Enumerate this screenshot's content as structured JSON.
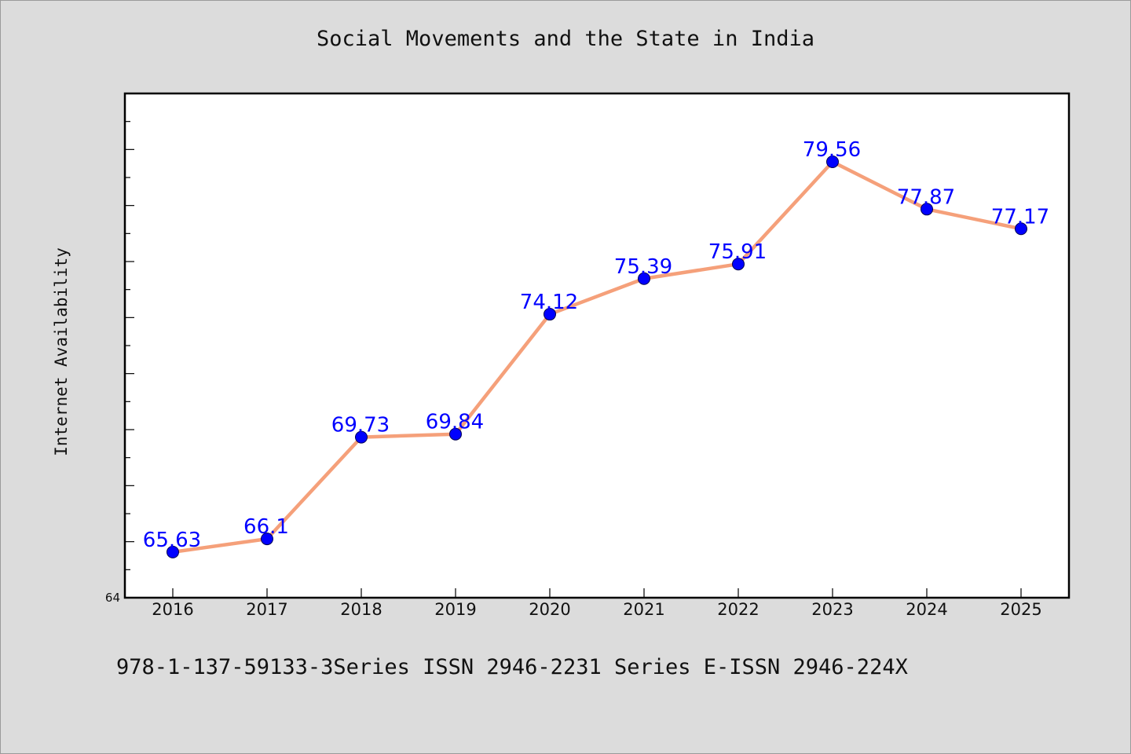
{
  "chart_data": {
    "type": "line",
    "title": "Social Movements and the State in India",
    "footer": "978-1-137-59133-3Series ISSN 2946-2231 Series E-ISSN 2946-224X",
    "xlabel": "",
    "ylabel": "Internet Availability",
    "x": [
      "2016",
      "2017",
      "2018",
      "2019",
      "2020",
      "2021",
      "2022",
      "2023",
      "2024",
      "2025"
    ],
    "series": [
      {
        "values": [
          65.63,
          66.1,
          69.73,
          69.84,
          74.12,
          75.39,
          75.91,
          79.56,
          77.87,
          77.17
        ],
        "labels": [
          "65.63",
          "66.1",
          "69.73",
          "69.84",
          "74.12",
          "75.39",
          "75.91",
          "79.56",
          "77.87",
          "77.17"
        ]
      }
    ],
    "ylim": [
      64,
      82
    ],
    "y_tick_labels": [
      "64"
    ],
    "grid": false,
    "legend": "none",
    "colors": {
      "line": "#f5a07a",
      "marker": "#0000ff",
      "data_label": "#0000ff",
      "plot_background": "#ffffff",
      "figure_background": "#dcdcdc"
    }
  }
}
